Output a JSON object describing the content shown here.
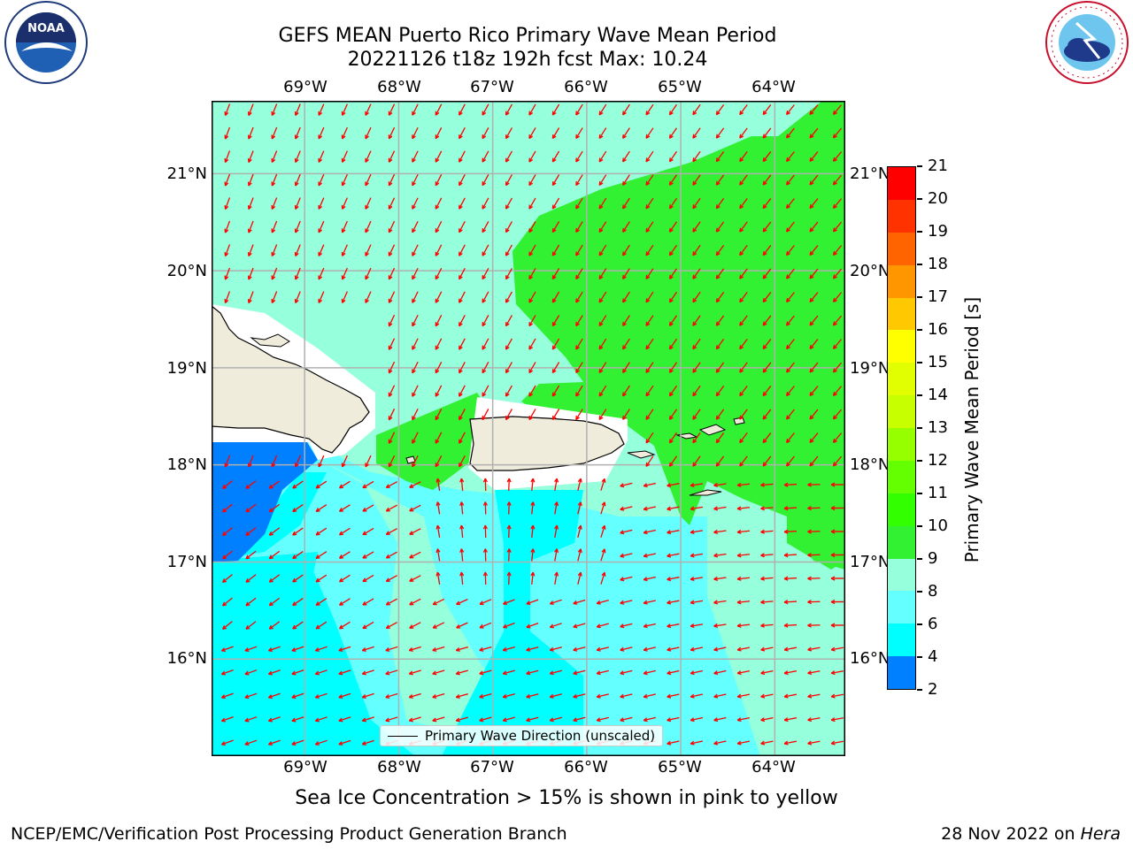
{
  "header": {
    "title_line1": "GEFS MEAN Puerto Rico Primary Wave Mean Period",
    "title_line2": "20221126 t18z 192h fcst   Max: 10.24"
  },
  "logos": {
    "left": "noara-logo",
    "left_text": "NOAA",
    "right": "nws-logo",
    "right_text": "NATIONAL WEATHER SERVICE"
  },
  "map": {
    "lon_labels": [
      "69°W",
      "68°W",
      "67°W",
      "66°W",
      "65°W",
      "64°W"
    ],
    "lat_labels": [
      "21°N",
      "20°N",
      "19°N",
      "18°N",
      "17°N",
      "16°N"
    ],
    "lon_values": [
      -69,
      -68,
      -67,
      -66,
      -65,
      -64
    ],
    "lat_values": [
      21,
      20,
      19,
      18,
      17,
      16
    ],
    "extent": {
      "lon_min": -69.99,
      "lon_max": -63.25,
      "lat_min": 15.0,
      "lat_max": 21.75
    },
    "arrow_color": "#ff0000",
    "land_color": "#efecdc",
    "grid_color": "#b0b0b0"
  },
  "colorbar": {
    "label": "Primary Wave Mean Period [s]",
    "ticks": [
      "21",
      "20",
      "19",
      "18",
      "17",
      "16",
      "15",
      "14",
      "13",
      "12",
      "11",
      "10",
      "9",
      "8",
      "6",
      "4",
      "2"
    ],
    "colors": [
      "#ff0000",
      "#ff3200",
      "#ff6400",
      "#ff9600",
      "#ffc800",
      "#ffff00",
      "#e1ff00",
      "#c8ff00",
      "#96ff00",
      "#64ff00",
      "#32ff00",
      "#32f032",
      "#96ffdc",
      "#64ffff",
      "#00ffff",
      "#0080ff",
      "#0000ff"
    ]
  },
  "legend": {
    "label": "Primary Wave Direction (unscaled)"
  },
  "caption": "Sea Ice Concentration > 15% is shown in pink to yellow",
  "footer": {
    "left": "NCEP/EMC/Verification Post Processing Product Generation Branch",
    "date": "28 Nov 2022 on ",
    "machine": "Hera"
  }
}
